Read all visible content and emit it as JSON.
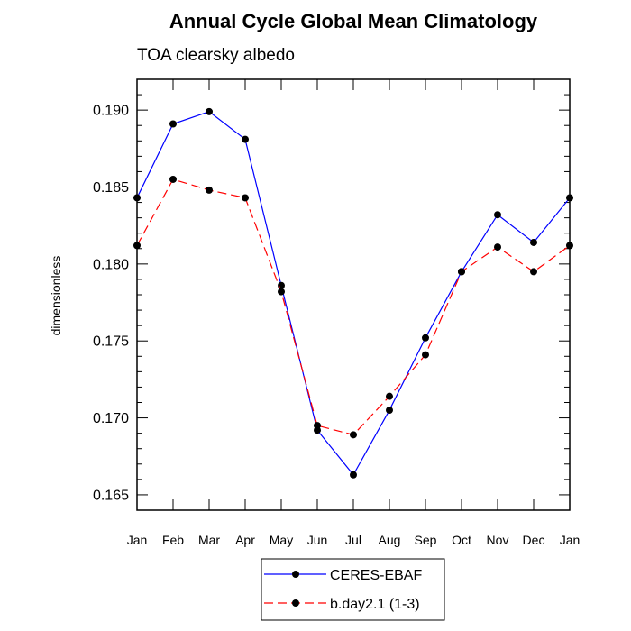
{
  "chart_data": {
    "type": "line",
    "title": "Annual Cycle Global Mean Climatology",
    "subtitle": "TOA clearsky albedo",
    "xlabel": "",
    "ylabel": "dimensionless",
    "categories": [
      "Jan",
      "Feb",
      "Mar",
      "Apr",
      "May",
      "Jun",
      "Jul",
      "Aug",
      "Sep",
      "Oct",
      "Nov",
      "Dec",
      "Jan"
    ],
    "ylim": [
      0.164,
      0.192
    ],
    "yticks": [
      0.165,
      0.17,
      0.175,
      0.18,
      0.185,
      0.19
    ],
    "ytick_labels": [
      "0.165",
      "0.170",
      "0.175",
      "0.180",
      "0.185",
      "0.190"
    ],
    "grid": false,
    "legend_position": "bottom",
    "series": [
      {
        "name": "CERES-EBAF",
        "color": "#0000ff",
        "dash": "solid",
        "marker": "filled-circle",
        "values": [
          0.1843,
          0.1891,
          0.1899,
          0.1881,
          0.1786,
          0.1692,
          0.1663,
          0.1705,
          0.1752,
          0.1795,
          0.1832,
          0.1814,
          0.1843
        ]
      },
      {
        "name": "b.day2.1 (1-3)",
        "color": "#ff0000",
        "dash": "dashed",
        "marker": "filled-circle",
        "values": [
          0.1812,
          0.1855,
          0.1848,
          0.1843,
          0.1782,
          0.1695,
          0.1689,
          0.1714,
          0.1741,
          0.1795,
          0.1811,
          0.1795,
          0.1812
        ]
      }
    ]
  }
}
